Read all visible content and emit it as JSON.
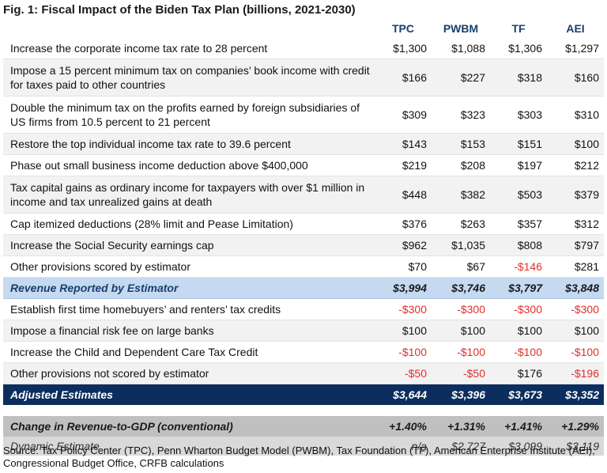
{
  "title": "Fig. 1: Fiscal Impact of the Biden Tax Plan (billions, 2021-2030)",
  "columns": [
    "TPC",
    "PWBM",
    "TF",
    "AEI"
  ],
  "rows_a": [
    {
      "label": "Increase the corporate income tax rate to 28 percent",
      "values": [
        "$1,300",
        "$1,088",
        "$1,306",
        "$1,297"
      ],
      "neg": [
        false,
        false,
        false,
        false
      ],
      "tall": false
    },
    {
      "label": "Impose a 15 percent minimum tax on companies’ book income with credit for taxes paid to other countries",
      "values": [
        "$166",
        "$227",
        "$318",
        "$160"
      ],
      "neg": [
        false,
        false,
        false,
        false
      ],
      "tall": true
    },
    {
      "label": "Double the minimum tax on the profits earned by foreign subsidiaries of US firms from 10.5 percent to 21 percent",
      "values": [
        "$309",
        "$323",
        "$303",
        "$310"
      ],
      "neg": [
        false,
        false,
        false,
        false
      ],
      "tall": true
    },
    {
      "label": "Restore the top individual income tax rate to 39.6 percent",
      "values": [
        "$143",
        "$153",
        "$151",
        "$100"
      ],
      "neg": [
        false,
        false,
        false,
        false
      ],
      "tall": false
    },
    {
      "label": "Phase out small business income deduction above $400,000",
      "values": [
        "$219",
        "$208",
        "$197",
        "$212"
      ],
      "neg": [
        false,
        false,
        false,
        false
      ],
      "tall": false
    },
    {
      "label": "Tax capital gains as ordinary income for taxpayers with over $1 million in income and tax unrealized gains at death",
      "values": [
        "$448",
        "$382",
        "$503",
        "$379"
      ],
      "neg": [
        false,
        false,
        false,
        false
      ],
      "tall": true
    },
    {
      "label": "Cap itemized deductions (28% limit and Pease Limitation)",
      "values": [
        "$376",
        "$263",
        "$357",
        "$312"
      ],
      "neg": [
        false,
        false,
        false,
        false
      ],
      "tall": false
    },
    {
      "label": "Increase the Social Security earnings cap",
      "values": [
        "$962",
        "$1,035",
        "$808",
        "$797"
      ],
      "neg": [
        false,
        false,
        false,
        false
      ],
      "tall": false
    },
    {
      "label": "Other provisions scored by estimator",
      "values": [
        "$70",
        "$67",
        "-$146",
        "$281"
      ],
      "neg": [
        false,
        false,
        true,
        false
      ],
      "tall": false
    }
  ],
  "subtotal": {
    "label": "Revenue Reported by Estimator",
    "values": [
      "$3,994",
      "$3,746",
      "$3,797",
      "$3,848"
    ]
  },
  "rows_b": [
    {
      "label": "Establish first time homebuyers’ and renters’ tax credits",
      "values": [
        "-$300",
        "-$300",
        "-$300",
        "-$300"
      ],
      "neg": [
        true,
        true,
        true,
        true
      ]
    },
    {
      "label": "Impose a financial risk fee on large banks",
      "values": [
        "$100",
        "$100",
        "$100",
        "$100"
      ],
      "neg": [
        false,
        false,
        false,
        false
      ]
    },
    {
      "label": "Increase the Child and Dependent Care Tax Credit",
      "values": [
        "-$100",
        "-$100",
        "-$100",
        "-$100"
      ],
      "neg": [
        true,
        true,
        true,
        true
      ]
    },
    {
      "label": "Other provisions not scored by estimator",
      "values": [
        "-$50",
        "-$50",
        "$176",
        "-$196"
      ],
      "neg": [
        true,
        true,
        false,
        true
      ]
    }
  ],
  "total": {
    "label": "Adjusted Estimates",
    "values": [
      "$3,644",
      "$3,396",
      "$3,673",
      "$3,352"
    ]
  },
  "gdp": {
    "label": "Change in Revenue-to-GDP (conventional)",
    "values": [
      "+1.40%",
      "+1.31%",
      "+1.41%",
      "+1.29%"
    ]
  },
  "dynamic": {
    "label": "Dynamic Estimate",
    "values": [
      "n/a",
      "$2,727",
      "$3,099",
      "$3,119"
    ]
  },
  "source": "Source: Tax Policy Center (TPC), Penn Wharton Budget Model (PWBM), Tax Foundation (TF), American Enterprise Institute (AEI), Congressional Budget Office, CRFB calculations",
  "colors": {
    "header_text": "#17406d",
    "subtotal_bg": "#c5d9f1",
    "total_bg": "#0b2e5e",
    "negative": "#e0302a",
    "gdp_bg": "#c0c0c0",
    "dynamic_bg": "#d9d9d9"
  }
}
